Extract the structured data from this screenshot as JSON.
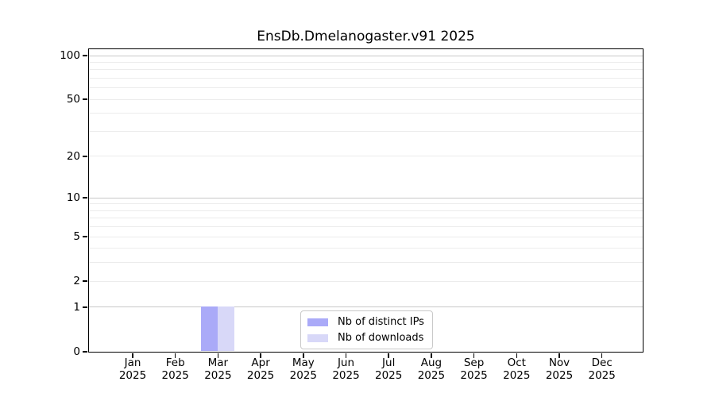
{
  "chart_data": {
    "type": "bar",
    "title": "EnsDb.Dmelanogaster.v91 2025",
    "x_tick_months": [
      "Jan",
      "Feb",
      "Mar",
      "Apr",
      "May",
      "Jun",
      "Jul",
      "Aug",
      "Sep",
      "Oct",
      "Nov",
      "Dec"
    ],
    "x_tick_year": "2025",
    "series": [
      {
        "name": "Nb of distinct IPs",
        "color": "#aaaaf8",
        "values": [
          0,
          0,
          1,
          0,
          0,
          0,
          0,
          0,
          0,
          0,
          0,
          0
        ]
      },
      {
        "name": "Nb of downloads",
        "color": "#d8d8f8",
        "values": [
          0,
          0,
          1,
          0,
          0,
          0,
          0,
          0,
          0,
          0,
          0,
          0
        ]
      }
    ],
    "yscale": "log1p",
    "ylim": [
      0,
      110
    ],
    "yticks": [
      0,
      1,
      2,
      5,
      10,
      20,
      50,
      100
    ],
    "grid": {
      "major": [
        1,
        10,
        100
      ],
      "minor": [
        2,
        3,
        4,
        5,
        6,
        7,
        8,
        9,
        20,
        30,
        40,
        50,
        60,
        70,
        80,
        90
      ],
      "major_color": "#c8c8c8",
      "minor_color": "#ececec"
    },
    "legend_position": "bottom-center",
    "axis_color": "#000000",
    "background_color": "#ffffff"
  }
}
